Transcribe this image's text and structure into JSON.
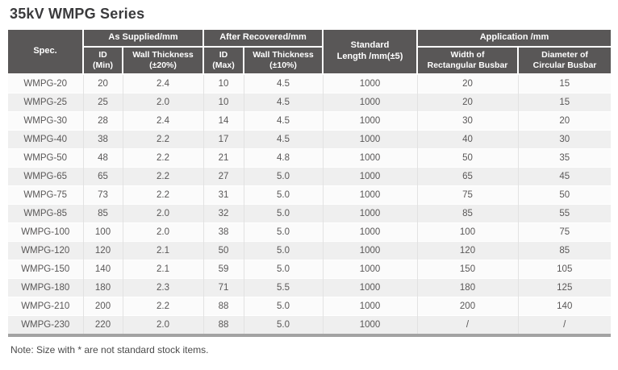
{
  "page": {
    "title": "35kV WMPG Series",
    "note": "Note: Size with * are not standard stock items."
  },
  "colors": {
    "header_bg": "#595757",
    "header_text": "#ffffff",
    "row_light": "#fbfbfb",
    "row_shaded": "#efefef",
    "body_text": "#595757",
    "title_text": "#3a3a3c",
    "bottom_bar": "#a3a3a3",
    "column_divider": "#e2e2e2"
  },
  "table": {
    "header": {
      "spec": "Spec.",
      "as_supplied": "As Supplied/mm",
      "after_recovered": "After Recovered/mm",
      "standard_length": "Standard\nLength /mm(±5)",
      "application": "Application /mm",
      "id_min": "ID\n(Min)",
      "wall_thickness_20": "Wall Thickness\n(±20%)",
      "id_max": "ID\n(Max)",
      "wall_thickness_10": "Wall Thickness\n(±10%)",
      "width_rect_busbar": "Width of\nRectangular Busbar",
      "dia_circ_busbar": "Diameter of\nCircular Busbar"
    },
    "column_keys": [
      "spec",
      "id_min",
      "wall_20",
      "id_max",
      "wall_10",
      "length",
      "width_rect",
      "dia_circ"
    ],
    "rows": [
      {
        "spec": "WMPG-20",
        "id_min": "20",
        "wall_20": "2.4",
        "id_max": "10",
        "wall_10": "4.5",
        "length": "1000",
        "width_rect": "20",
        "dia_circ": "15"
      },
      {
        "spec": "WMPG-25",
        "id_min": "25",
        "wall_20": "2.0",
        "id_max": "10",
        "wall_10": "4.5",
        "length": "1000",
        "width_rect": "20",
        "dia_circ": "15"
      },
      {
        "spec": "WMPG-30",
        "id_min": "28",
        "wall_20": "2.4",
        "id_max": "14",
        "wall_10": "4.5",
        "length": "1000",
        "width_rect": "30",
        "dia_circ": "20"
      },
      {
        "spec": "WMPG-40",
        "id_min": "38",
        "wall_20": "2.2",
        "id_max": "17",
        "wall_10": "4.5",
        "length": "1000",
        "width_rect": "40",
        "dia_circ": "30"
      },
      {
        "spec": "WMPG-50",
        "id_min": "48",
        "wall_20": "2.2",
        "id_max": "21",
        "wall_10": "4.8",
        "length": "1000",
        "width_rect": "50",
        "dia_circ": "35"
      },
      {
        "spec": "WMPG-65",
        "id_min": "65",
        "wall_20": "2.2",
        "id_max": "27",
        "wall_10": "5.0",
        "length": "1000",
        "width_rect": "65",
        "dia_circ": "45"
      },
      {
        "spec": "WMPG-75",
        "id_min": "73",
        "wall_20": "2.2",
        "id_max": "31",
        "wall_10": "5.0",
        "length": "1000",
        "width_rect": "75",
        "dia_circ": "50"
      },
      {
        "spec": "WMPG-85",
        "id_min": "85",
        "wall_20": "2.0",
        "id_max": "32",
        "wall_10": "5.0",
        "length": "1000",
        "width_rect": "85",
        "dia_circ": "55"
      },
      {
        "spec": "WMPG-100",
        "id_min": "100",
        "wall_20": "2.0",
        "id_max": "38",
        "wall_10": "5.0",
        "length": "1000",
        "width_rect": "100",
        "dia_circ": "75"
      },
      {
        "spec": "WMPG-120",
        "id_min": "120",
        "wall_20": "2.1",
        "id_max": "50",
        "wall_10": "5.0",
        "length": "1000",
        "width_rect": "120",
        "dia_circ": "85"
      },
      {
        "spec": "WMPG-150",
        "id_min": "140",
        "wall_20": "2.1",
        "id_max": "59",
        "wall_10": "5.0",
        "length": "1000",
        "width_rect": "150",
        "dia_circ": "105"
      },
      {
        "spec": "WMPG-180",
        "id_min": "180",
        "wall_20": "2.3",
        "id_max": "71",
        "wall_10": "5.5",
        "length": "1000",
        "width_rect": "180",
        "dia_circ": "125"
      },
      {
        "spec": "WMPG-210",
        "id_min": "200",
        "wall_20": "2.2",
        "id_max": "88",
        "wall_10": "5.0",
        "length": "1000",
        "width_rect": "200",
        "dia_circ": "140"
      },
      {
        "spec": "WMPG-230",
        "id_min": "220",
        "wall_20": "2.0",
        "id_max": "88",
        "wall_10": "5.0",
        "length": "1000",
        "width_rect": "/",
        "dia_circ": "/"
      }
    ]
  }
}
